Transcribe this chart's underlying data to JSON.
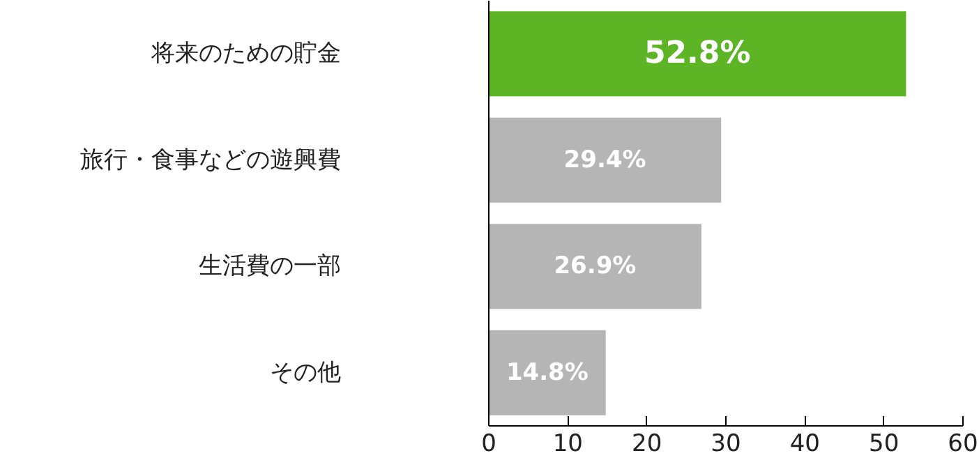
{
  "chart_data": {
    "type": "bar",
    "orientation": "horizontal",
    "categories": [
      "将来のための貯金",
      "旅行・食事などの遊興費",
      "生活費の一部",
      "その他"
    ],
    "values": [
      52.8,
      29.4,
      26.9,
      14.8
    ],
    "colors": [
      "#5db526",
      "#b5b5b5",
      "#b5b5b5",
      "#b5b5b5"
    ],
    "value_labels": [
      "52.8%",
      "29.4%",
      "26.9%",
      "14.8%"
    ],
    "xlim": [
      0,
      60
    ],
    "xticks": [
      0,
      10,
      20,
      30,
      40,
      50,
      60
    ],
    "grid": false
  }
}
